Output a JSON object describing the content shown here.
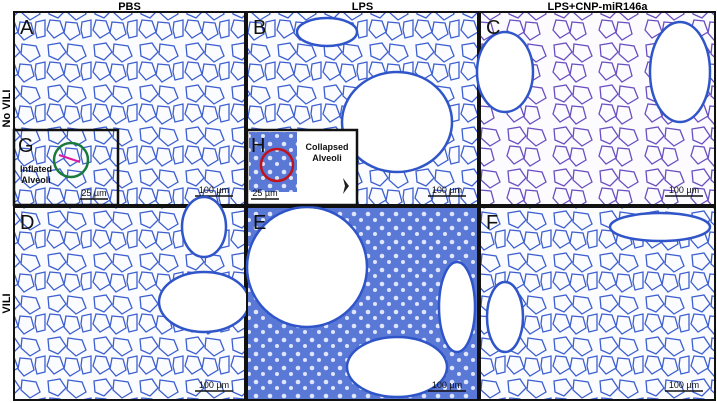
{
  "columns": [
    "PBS",
    "LPS",
    "LPS+CNP-miR146a"
  ],
  "rows": [
    "No VILI",
    "VILI"
  ],
  "panels": [
    {
      "letter": "A",
      "scale": "100 µm"
    },
    {
      "letter": "B",
      "scale": "100 µm"
    },
    {
      "letter": "C",
      "scale": "100 µm"
    },
    {
      "letter": "D",
      "scale": "100 µm"
    },
    {
      "letter": "E",
      "scale": "100 µm"
    },
    {
      "letter": "F",
      "scale": "100 µm"
    }
  ],
  "insets": [
    {
      "letter": "G",
      "label": [
        "Inflated",
        "Alveoli"
      ],
      "scale": "25 µm"
    },
    {
      "letter": "H",
      "label": [
        "Collapsed",
        "Alveoli"
      ],
      "scale": "25 µm"
    }
  ]
}
